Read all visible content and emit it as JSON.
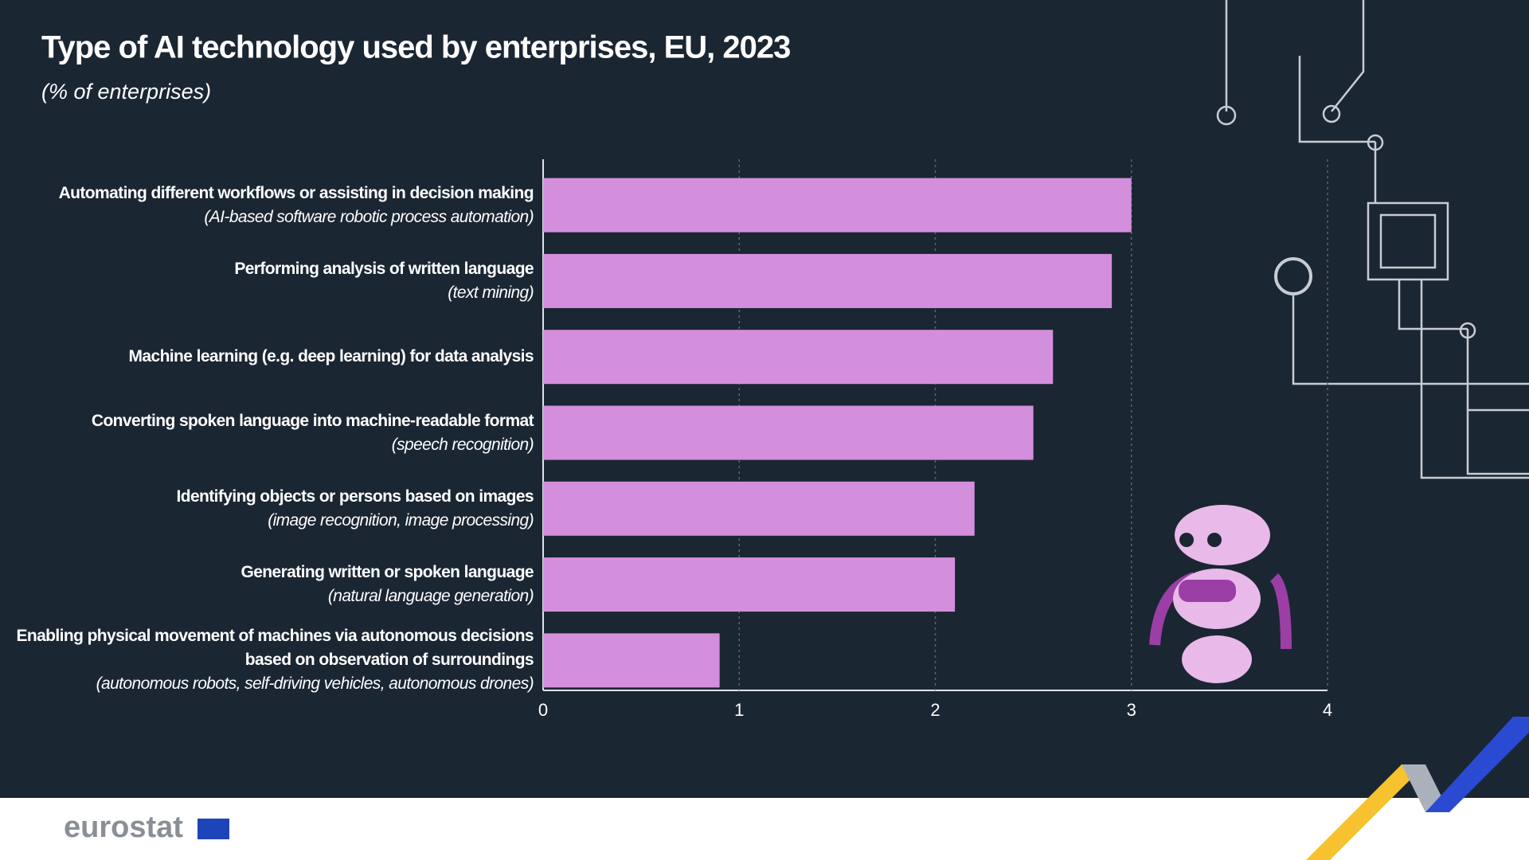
{
  "chart_data": {
    "type": "bar",
    "orientation": "horizontal",
    "title": "Type of AI technology used by enterprises, EU, 2023",
    "subtitle": "(% of enterprises)",
    "categories": [
      "Automating different workflows or assisting in decision making",
      "Performing analysis of written language",
      "Machine learning (e.g. deep learning) for data analysis",
      "Converting spoken language into machine-readable format",
      "Identifying objects or persons based on images",
      "Generating written or spoken language",
      "Enabling physical movement of machines via autonomous decisions based on observation of surroundings"
    ],
    "category_notes": [
      "(AI-based software robotic process automation)",
      "(text mining)",
      null,
      "(speech recognition)",
      "(image recognition, image processing)",
      "(natural language generation)",
      "(autonomous robots, self-driving vehicles, autonomous drones)"
    ],
    "values": [
      3.0,
      2.9,
      2.6,
      2.5,
      2.2,
      2.1,
      0.9
    ],
    "color": "#d48fdc",
    "xlim": [
      0,
      4
    ],
    "xticks": [
      0,
      1,
      2,
      3,
      4
    ],
    "grid": true
  },
  "brand": "eurostat"
}
